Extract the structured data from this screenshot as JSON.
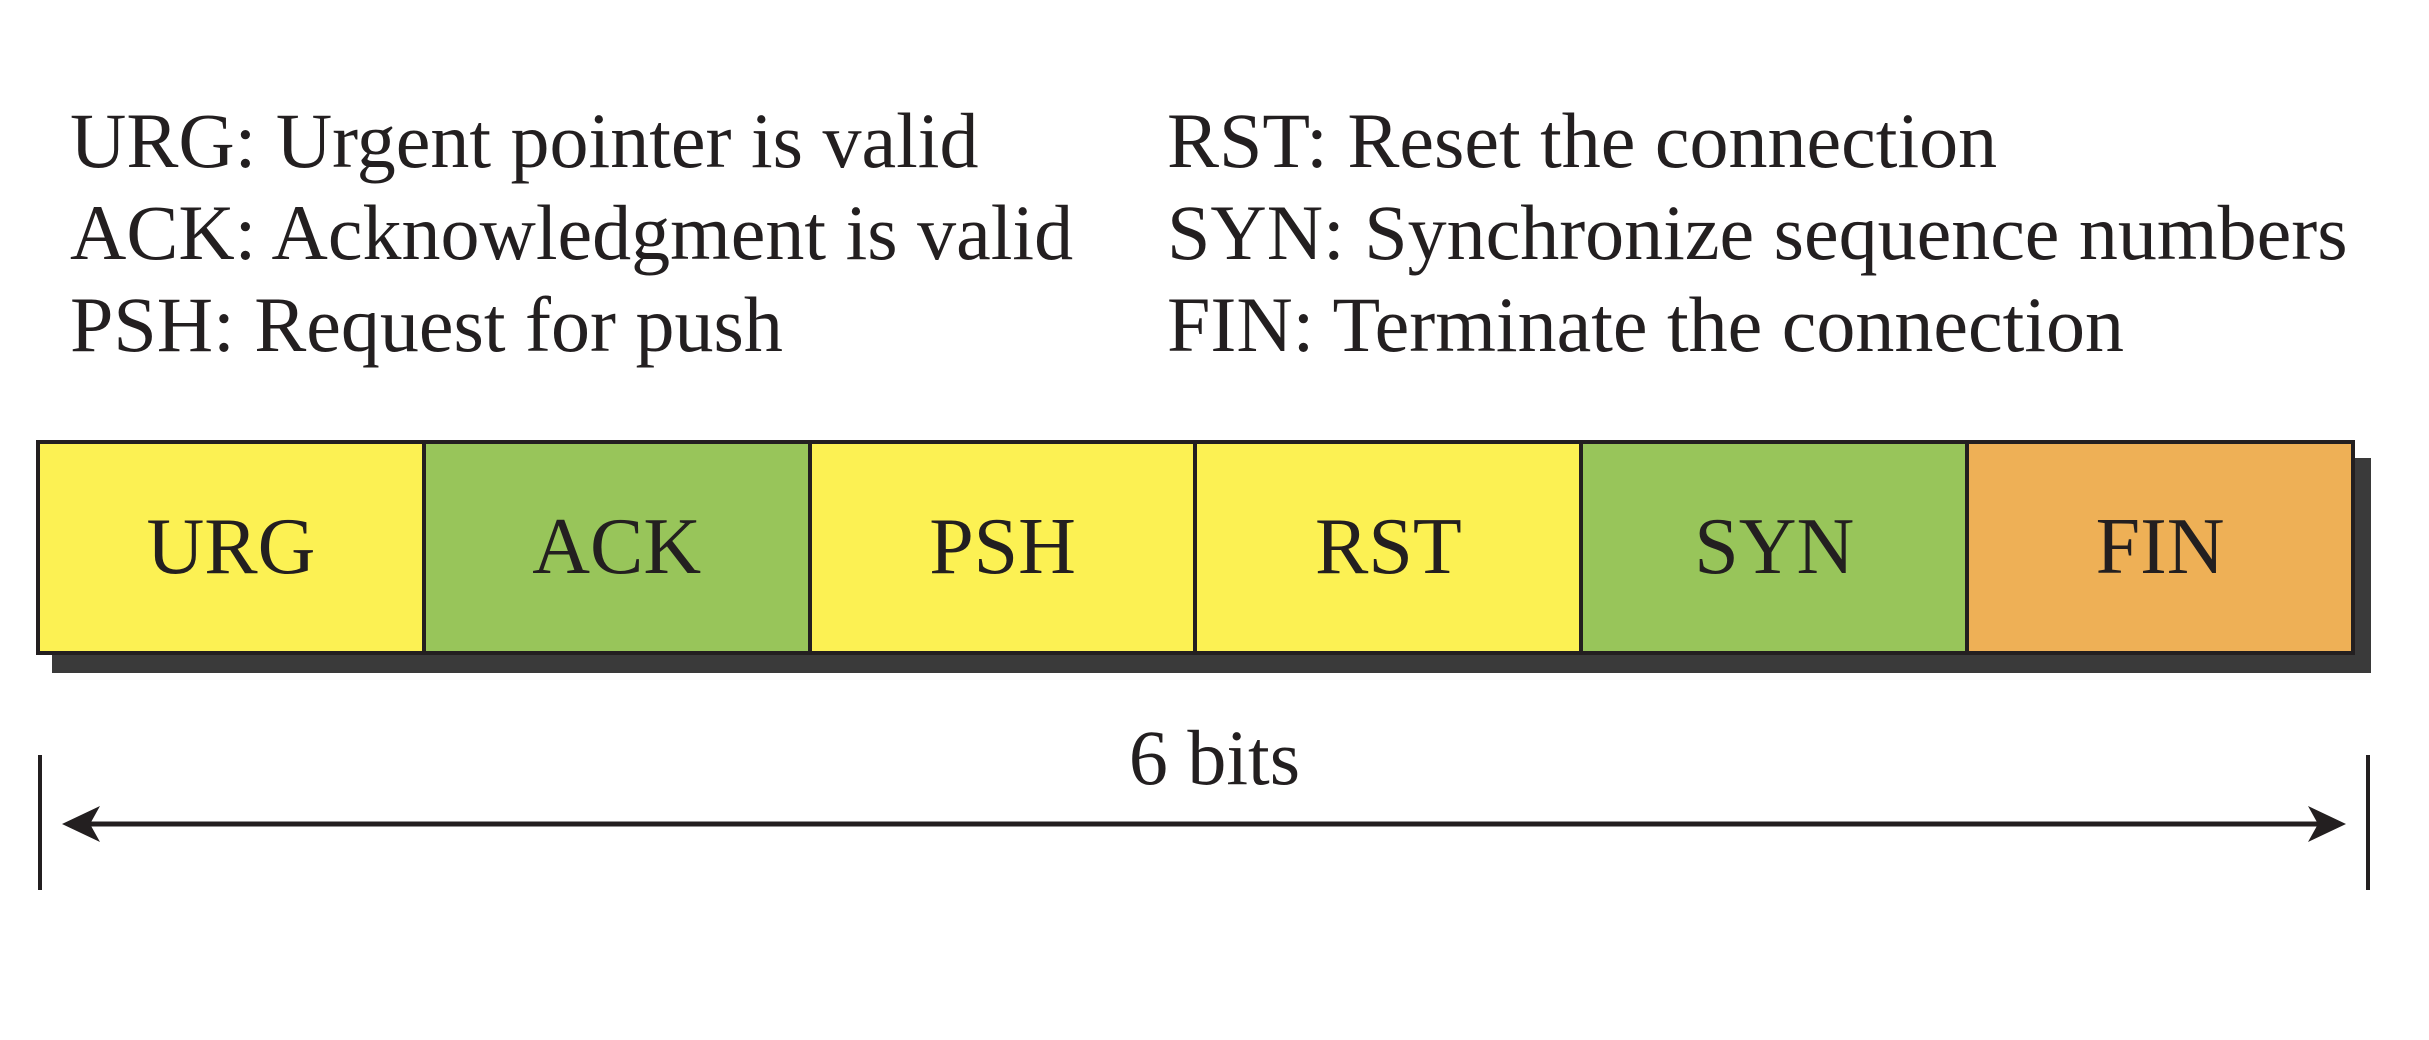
{
  "legend": {
    "left": [
      "URG: Urgent pointer is valid",
      "ACK: Acknowledgment is valid",
      "PSH: Request for push"
    ],
    "right": [
      "RST: Reset the connection",
      "SYN: Synchronize sequence numbers",
      "FIN: Terminate the connection"
    ]
  },
  "fields": [
    {
      "label": "URG",
      "color": "#fcf153"
    },
    {
      "label": "ACK",
      "color": "#98c55a"
    },
    {
      "label": "PSH",
      "color": "#fcf153"
    },
    {
      "label": "RST",
      "color": "#fcf153"
    },
    {
      "label": "SYN",
      "color": "#98c55a"
    },
    {
      "label": "FIN",
      "color": "#eeb056"
    }
  ],
  "size_label": "6 bits"
}
